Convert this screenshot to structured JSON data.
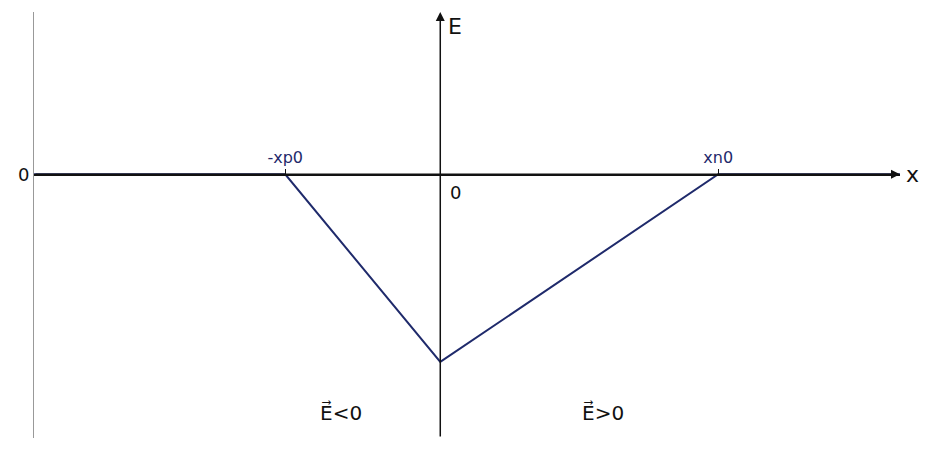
{
  "chart_data": {
    "type": "line",
    "x_label": "x",
    "y_label": "E",
    "x": [
      -3.8,
      -1.45,
      0,
      2.6,
      4.3
    ],
    "values": [
      0,
      0,
      -1.85,
      0,
      0
    ],
    "color": "#1f2a6b",
    "xlim": [
      -3.8,
      4.3
    ],
    "ylim": [
      -2.6,
      1.6
    ],
    "xticks": [
      {
        "value": -1.45,
        "label": "-xp0"
      },
      {
        "value": 2.6,
        "label": "xn0"
      }
    ],
    "yticks": [
      0
    ],
    "grid": false,
    "annotations": [
      {
        "text": "0",
        "x": 0,
        "y": 0
      },
      {
        "text": "E⃗<0",
        "x": -0.93,
        "y": -2.35
      },
      {
        "text": "E⃗>0",
        "x": 1.52,
        "y": -2.35
      }
    ]
  }
}
